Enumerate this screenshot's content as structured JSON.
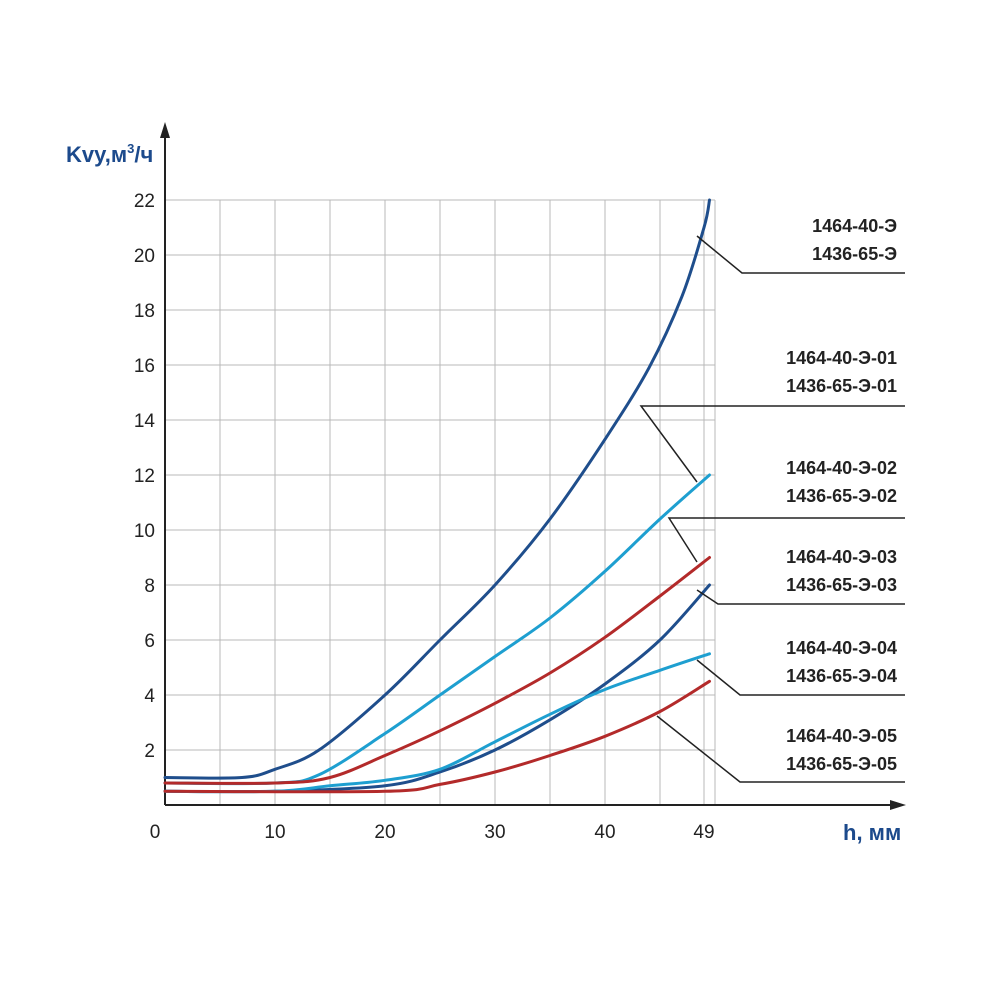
{
  "chart_data": {
    "type": "line",
    "xlabel": "h, мм",
    "ylabel_main": "Kvy,м",
    "ylabel_sup": "3",
    "ylabel_tail": "/ч",
    "xlim": [
      0,
      50
    ],
    "ylim": [
      0,
      22
    ],
    "grid": true,
    "xticks": [
      0,
      10,
      20,
      30,
      40,
      49
    ],
    "xtick_labels": [
      "0",
      "10",
      "20",
      "30",
      "40",
      "49"
    ],
    "yticks": [
      2,
      4,
      6,
      8,
      10,
      12,
      14,
      16,
      18,
      20,
      22
    ],
    "ytick_labels": [
      "2",
      "4",
      "6",
      "8",
      "10",
      "12",
      "14",
      "16",
      "18",
      "20",
      "22"
    ],
    "colors": {
      "dark_blue": "#1f4e8c",
      "light_blue": "#1e9fd0",
      "red": "#b32a2a",
      "grid": "#b8b8b8",
      "axis": "#222222"
    },
    "series": [
      {
        "name": "1464-40-Э / 1436-65-Э",
        "color": "#1f4e8c",
        "x": [
          0,
          7,
          10,
          14,
          20,
          25,
          30,
          35,
          40,
          44,
          47,
          49,
          49.5
        ],
        "y": [
          1.0,
          1.0,
          1.3,
          2.0,
          4.0,
          6.0,
          8.0,
          10.4,
          13.3,
          15.9,
          18.5,
          21.0,
          22.0
        ]
      },
      {
        "name": "1464-40-Э-01 / 1436-65-Э-01",
        "color": "#1e9fd0",
        "x": [
          0,
          10,
          14,
          20,
          25,
          30,
          35,
          40,
          45,
          49.5
        ],
        "y": [
          0.8,
          0.8,
          1.1,
          2.6,
          4.0,
          5.4,
          6.8,
          8.5,
          10.4,
          12.0
        ]
      },
      {
        "name": "1464-40-Э-02 / 1436-65-Э-02",
        "color": "#b32a2a",
        "x": [
          0,
          10,
          15,
          20,
          25,
          30,
          35,
          40,
          45,
          49.5
        ],
        "y": [
          0.8,
          0.8,
          1.0,
          1.8,
          2.7,
          3.7,
          4.8,
          6.1,
          7.6,
          9.0
        ]
      },
      {
        "name": "1464-40-Э-03 / 1436-65-Э-03",
        "color": "#1f4e8c",
        "x": [
          0,
          10,
          20,
          25,
          30,
          35,
          40,
          45,
          49.5
        ],
        "y": [
          0.5,
          0.5,
          0.7,
          1.2,
          2.0,
          3.1,
          4.4,
          6.0,
          8.0
        ]
      },
      {
        "name": "1464-40-Э-04 / 1436-65-Э-04",
        "color": "#1e9fd0",
        "x": [
          0,
          10,
          15,
          20,
          25,
          30,
          35,
          40,
          45,
          49.5
        ],
        "y": [
          0.5,
          0.5,
          0.7,
          0.9,
          1.3,
          2.3,
          3.3,
          4.2,
          4.9,
          5.5
        ]
      },
      {
        "name": "1464-40-Э-05 / 1436-65-Э-05",
        "color": "#b32a2a",
        "x": [
          0,
          20,
          25,
          30,
          35,
          40,
          45,
          49.5
        ],
        "y": [
          0.5,
          0.5,
          0.75,
          1.2,
          1.8,
          2.5,
          3.4,
          4.5
        ]
      }
    ],
    "legend": [
      {
        "line1": "1464-40-Э",
        "line2": "1436-65-Э"
      },
      {
        "line1": "1464-40-Э-01",
        "line2": "1436-65-Э-01"
      },
      {
        "line1": "1464-40-Э-02",
        "line2": "1436-65-Э-02"
      },
      {
        "line1": "1464-40-Э-03",
        "line2": "1436-65-Э-03"
      },
      {
        "line1": "1464-40-Э-04",
        "line2": "1436-65-Э-04"
      },
      {
        "line1": "1464-40-Э-05",
        "line2": "1436-65-Э-05"
      }
    ]
  }
}
